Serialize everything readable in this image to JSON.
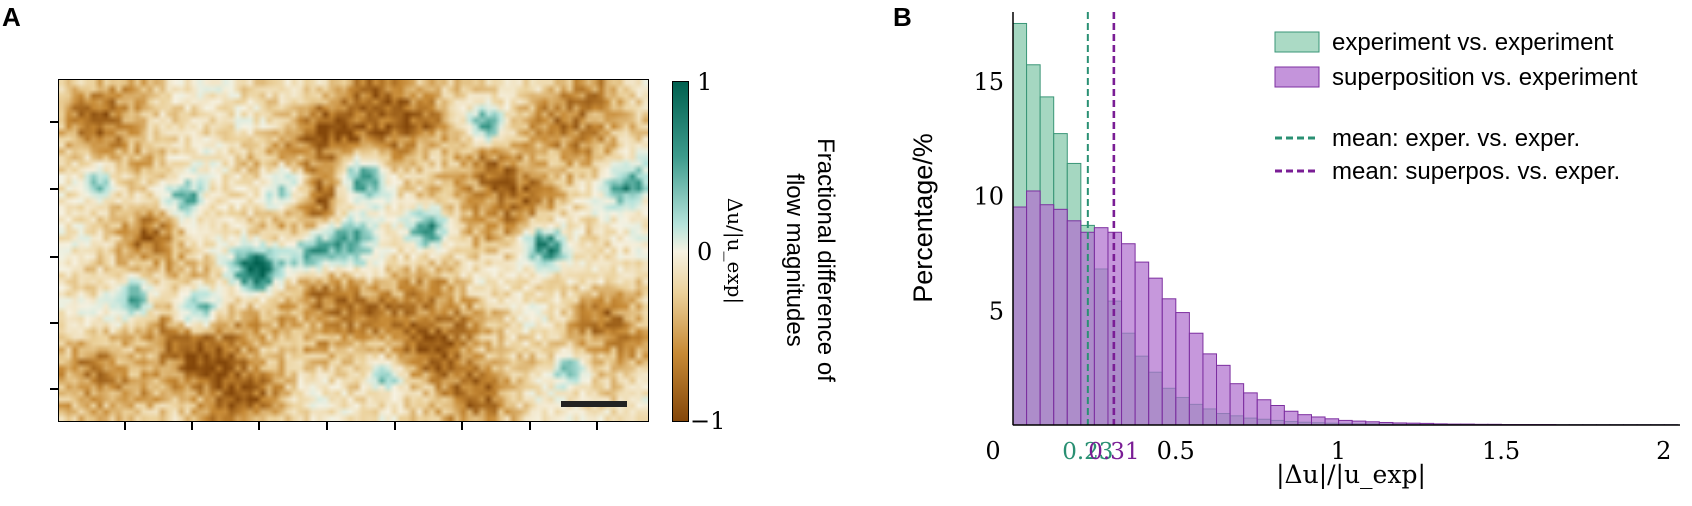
{
  "panels": {
    "a_label": "A",
    "b_label": "B"
  },
  "heatmap": {
    "colorbar": {
      "tick_labels": [
        "1",
        "0",
        "−1"
      ],
      "formula": "Δu/|u_exp|",
      "title_line1": "Fractional difference of",
      "title_line2": "flow magnitudes",
      "vmin": -1,
      "vmax": 1
    },
    "colormap": [
      "#84470a",
      "#c78a35",
      "#ecd29c",
      "#f6f2e2",
      "#b5e3db",
      "#3d9b8c",
      "#00604f"
    ]
  },
  "chart_data": {
    "type": "bar",
    "xlabel": "|Δu|/|u_exp|",
    "ylabel": "Percentage/%",
    "xlim": [
      0,
      2.05
    ],
    "ylim": [
      0,
      18
    ],
    "xticks": [
      0,
      0.5,
      1,
      1.5,
      2
    ],
    "xtick_labels": [
      "0",
      "0.5",
      "1",
      "1.5",
      "2"
    ],
    "yticks": [
      5,
      10,
      15
    ],
    "ytick_labels": [
      "5",
      "10",
      "15"
    ],
    "bin_width": 0.0417,
    "series": [
      {
        "name": "experiment vs. experiment",
        "color": "#8fcdb2",
        "edge_color": "#3a9677",
        "values": [
          17.5,
          15.7,
          14.3,
          12.7,
          11.4,
          8.7,
          6.8,
          5.4,
          4.0,
          3.0,
          2.3,
          1.6,
          1.2,
          0.9,
          0.7,
          0.5,
          0.4,
          0.3,
          0.25,
          0.2,
          0.15,
          0.12,
          0.1,
          0.08,
          0.07,
          0.05,
          0.05,
          0.04,
          0.03,
          0.03,
          0.02,
          0.02,
          0.02,
          0.01,
          0.01,
          0.01,
          0.01,
          0.01,
          0.01,
          0.01,
          0.01,
          0.01,
          0.01,
          0.01,
          0.01,
          0.01,
          0.01,
          0.01,
          0.01
        ]
      },
      {
        "name": "superposition vs. experiment",
        "color": "#b070cf",
        "edge_color": "#7d2fa0",
        "values": [
          9.5,
          10.2,
          9.6,
          9.4,
          8.9,
          8.4,
          8.6,
          8.4,
          7.9,
          7.1,
          6.4,
          5.5,
          4.9,
          4.0,
          3.1,
          2.6,
          1.8,
          1.4,
          1.1,
          0.85,
          0.6,
          0.45,
          0.35,
          0.27,
          0.2,
          0.17,
          0.14,
          0.11,
          0.09,
          0.08,
          0.07,
          0.05,
          0.04,
          0.04,
          0.03,
          0.03,
          0.02,
          0.02,
          0.02,
          0.02,
          0.01,
          0.01,
          0.01,
          0.01,
          0.01,
          0.01,
          0.01,
          0.01,
          0.01
        ]
      }
    ],
    "means": [
      {
        "label": "mean: exper. vs. exper.",
        "value": 0.23,
        "value_label": "0.23",
        "color": "#2a9073"
      },
      {
        "label": "mean: superpos. vs. exper.",
        "value": 0.31,
        "value_label": "0.31",
        "color": "#7a1d95"
      }
    ],
    "legend_position": "top-right"
  }
}
